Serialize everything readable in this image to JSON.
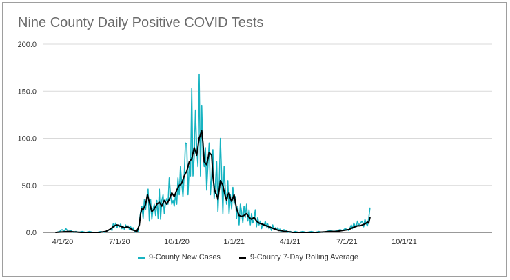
{
  "chart_data": {
    "type": "line",
    "title": "Nine County Daily Positive COVID Tests",
    "xlabel": "",
    "ylabel": "",
    "ylim": [
      0,
      200
    ],
    "y_ticks": [
      "0.0",
      "50.0",
      "100.0",
      "150.0",
      "200.0"
    ],
    "x_ticks": [
      "4/1/20",
      "7/1/20",
      "10/1/20",
      "1/1/21",
      "4/1/21",
      "7/1/21",
      "10/1/21"
    ],
    "x_tick_days": [
      31,
      122,
      214,
      306,
      396,
      487,
      579
    ],
    "xlim_days": [
      0,
      720
    ],
    "x_unit": "days since 3/1/20",
    "legend": "bottom",
    "series": [
      {
        "name": "9-County New Cases",
        "color": "#17b3c1",
        "points": [
          [
            20,
            0
          ],
          [
            26,
            1
          ],
          [
            30,
            3
          ],
          [
            33,
            1
          ],
          [
            36,
            4
          ],
          [
            40,
            1
          ],
          [
            44,
            2
          ],
          [
            48,
            0
          ],
          [
            52,
            1
          ],
          [
            56,
            0
          ],
          [
            62,
            1
          ],
          [
            68,
            0
          ],
          [
            74,
            1
          ],
          [
            80,
            0
          ],
          [
            86,
            0
          ],
          [
            92,
            1
          ],
          [
            98,
            0
          ],
          [
            104,
            2
          ],
          [
            108,
            4
          ],
          [
            110,
            2
          ],
          [
            112,
            9
          ],
          [
            114,
            6
          ],
          [
            116,
            10
          ],
          [
            118,
            5
          ],
          [
            120,
            8
          ],
          [
            122,
            6
          ],
          [
            124,
            9
          ],
          [
            126,
            4
          ],
          [
            128,
            7
          ],
          [
            130,
            3
          ],
          [
            132,
            8
          ],
          [
            134,
            5
          ],
          [
            136,
            7
          ],
          [
            138,
            3
          ],
          [
            140,
            6
          ],
          [
            142,
            2
          ],
          [
            144,
            5
          ],
          [
            146,
            2
          ],
          [
            148,
            0
          ],
          [
            150,
            3
          ],
          [
            152,
            1
          ],
          [
            154,
            12
          ],
          [
            156,
            22
          ],
          [
            158,
            28
          ],
          [
            160,
            15
          ],
          [
            162,
            35
          ],
          [
            164,
            24
          ],
          [
            166,
            38
          ],
          [
            168,
            46
          ],
          [
            170,
            12
          ],
          [
            172,
            35
          ],
          [
            174,
            14
          ],
          [
            176,
            25
          ],
          [
            178,
            30
          ],
          [
            180,
            18
          ],
          [
            182,
            34
          ],
          [
            184,
            15
          ],
          [
            186,
            46
          ],
          [
            188,
            14
          ],
          [
            190,
            34
          ],
          [
            192,
            40
          ],
          [
            194,
            20
          ],
          [
            196,
            32
          ],
          [
            198,
            36
          ],
          [
            200,
            30
          ],
          [
            202,
            58
          ],
          [
            204,
            40
          ],
          [
            206,
            30
          ],
          [
            208,
            34
          ],
          [
            210,
            28
          ],
          [
            212,
            40
          ],
          [
            214,
            30
          ],
          [
            216,
            58
          ],
          [
            218,
            40
          ],
          [
            220,
            70
          ],
          [
            222,
            52
          ],
          [
            224,
            38
          ],
          [
            226,
            60
          ],
          [
            228,
            95
          ],
          [
            230,
            94
          ],
          [
            232,
            40
          ],
          [
            234,
            70
          ],
          [
            236,
            60
          ],
          [
            238,
            153
          ],
          [
            240,
            60
          ],
          [
            242,
            80
          ],
          [
            244,
            130
          ],
          [
            246,
            90
          ],
          [
            248,
            70
          ],
          [
            250,
            168
          ],
          [
            252,
            60
          ],
          [
            254,
            135
          ],
          [
            256,
            82
          ],
          [
            258,
            70
          ],
          [
            260,
            90
          ],
          [
            262,
            45
          ],
          [
            264,
            72
          ],
          [
            266,
            95
          ],
          [
            268,
            40
          ],
          [
            270,
            60
          ],
          [
            272,
            88
          ],
          [
            274,
            36
          ],
          [
            276,
            52
          ],
          [
            278,
            75
          ],
          [
            280,
            22
          ],
          [
            282,
            50
          ],
          [
            284,
            100
          ],
          [
            286,
            60
          ],
          [
            288,
            20
          ],
          [
            290,
            70
          ],
          [
            292,
            45
          ],
          [
            294,
            30
          ],
          [
            296,
            55
          ],
          [
            298,
            20
          ],
          [
            300,
            40
          ],
          [
            302,
            25
          ],
          [
            304,
            48
          ],
          [
            306,
            30
          ],
          [
            308,
            38
          ],
          [
            310,
            15
          ],
          [
            312,
            28
          ],
          [
            314,
            8
          ],
          [
            316,
            30
          ],
          [
            318,
            22
          ],
          [
            320,
            10
          ],
          [
            322,
            28
          ],
          [
            324,
            16
          ],
          [
            326,
            30
          ],
          [
            328,
            12
          ],
          [
            330,
            24
          ],
          [
            332,
            8
          ],
          [
            334,
            20
          ],
          [
            336,
            10
          ],
          [
            338,
            14
          ],
          [
            340,
            24
          ],
          [
            342,
            6
          ],
          [
            344,
            16
          ],
          [
            346,
            8
          ],
          [
            348,
            12
          ],
          [
            350,
            4
          ],
          [
            352,
            10
          ],
          [
            354,
            7
          ],
          [
            356,
            12
          ],
          [
            358,
            6
          ],
          [
            360,
            9
          ],
          [
            362,
            4
          ],
          [
            364,
            6
          ],
          [
            366,
            2
          ],
          [
            368,
            8
          ],
          [
            370,
            3
          ],
          [
            372,
            5
          ],
          [
            374,
            3
          ],
          [
            376,
            5
          ],
          [
            378,
            2
          ],
          [
            380,
            4
          ],
          [
            382,
            1
          ],
          [
            384,
            2
          ],
          [
            386,
            3
          ],
          [
            388,
            1
          ],
          [
            390,
            2
          ],
          [
            392,
            0
          ],
          [
            396,
            1
          ],
          [
            400,
            0
          ],
          [
            404,
            1
          ],
          [
            410,
            0
          ],
          [
            416,
            1
          ],
          [
            422,
            0
          ],
          [
            430,
            1
          ],
          [
            436,
            0
          ],
          [
            442,
            1
          ],
          [
            448,
            0
          ],
          [
            454,
            1
          ],
          [
            460,
            2
          ],
          [
            466,
            1
          ],
          [
            472,
            2
          ],
          [
            476,
            3
          ],
          [
            480,
            2
          ],
          [
            484,
            4
          ],
          [
            488,
            3
          ],
          [
            490,
            2
          ],
          [
            492,
            5
          ],
          [
            494,
            8
          ],
          [
            496,
            4
          ],
          [
            498,
            10
          ],
          [
            500,
            7
          ],
          [
            502,
            6
          ],
          [
            504,
            12
          ],
          [
            506,
            8
          ],
          [
            508,
            9
          ],
          [
            510,
            11
          ],
          [
            512,
            12
          ],
          [
            514,
            6
          ],
          [
            516,
            14
          ],
          [
            518,
            9
          ],
          [
            520,
            7
          ],
          [
            522,
            15
          ],
          [
            524,
            26
          ]
        ]
      },
      {
        "name": "9-County 7-Day Rolling Average",
        "color": "#000000",
        "points": [
          [
            20,
            0
          ],
          [
            40,
            1
          ],
          [
            60,
            0
          ],
          [
            90,
            0
          ],
          [
            100,
            1
          ],
          [
            106,
            3
          ],
          [
            110,
            5
          ],
          [
            114,
            7
          ],
          [
            118,
            8
          ],
          [
            122,
            7
          ],
          [
            126,
            6
          ],
          [
            130,
            5
          ],
          [
            134,
            6
          ],
          [
            138,
            5
          ],
          [
            142,
            3
          ],
          [
            146,
            2
          ],
          [
            150,
            1
          ],
          [
            154,
            8
          ],
          [
            156,
            20
          ],
          [
            158,
            25
          ],
          [
            160,
            24
          ],
          [
            164,
            30
          ],
          [
            167,
            40
          ],
          [
            170,
            32
          ],
          [
            174,
            22
          ],
          [
            178,
            25
          ],
          [
            182,
            30
          ],
          [
            186,
            32
          ],
          [
            190,
            28
          ],
          [
            194,
            34
          ],
          [
            198,
            30
          ],
          [
            202,
            35
          ],
          [
            206,
            42
          ],
          [
            210,
            38
          ],
          [
            214,
            45
          ],
          [
            218,
            50
          ],
          [
            222,
            52
          ],
          [
            226,
            60
          ],
          [
            230,
            65
          ],
          [
            234,
            75
          ],
          [
            238,
            78
          ],
          [
            242,
            90
          ],
          [
            246,
            82
          ],
          [
            250,
            100
          ],
          [
            254,
            108
          ],
          [
            256,
            95
          ],
          [
            258,
            75
          ],
          [
            262,
            72
          ],
          [
            266,
            85
          ],
          [
            270,
            82
          ],
          [
            272,
            60
          ],
          [
            274,
            48
          ],
          [
            276,
            42
          ],
          [
            278,
            40
          ],
          [
            280,
            35
          ],
          [
            284,
            55
          ],
          [
            288,
            50
          ],
          [
            292,
            38
          ],
          [
            294,
            34
          ],
          [
            296,
            40
          ],
          [
            298,
            42
          ],
          [
            300,
            36
          ],
          [
            302,
            33
          ],
          [
            306,
            40
          ],
          [
            310,
            25
          ],
          [
            314,
            18
          ],
          [
            318,
            17
          ],
          [
            322,
            18
          ],
          [
            326,
            20
          ],
          [
            330,
            16
          ],
          [
            334,
            14
          ],
          [
            338,
            16
          ],
          [
            342,
            12
          ],
          [
            346,
            10
          ],
          [
            350,
            9
          ],
          [
            354,
            8
          ],
          [
            358,
            7
          ],
          [
            362,
            6
          ],
          [
            366,
            5
          ],
          [
            370,
            4
          ],
          [
            374,
            3
          ],
          [
            378,
            2
          ],
          [
            382,
            2
          ],
          [
            386,
            1
          ],
          [
            390,
            1
          ],
          [
            400,
            0
          ],
          [
            420,
            0
          ],
          [
            440,
            0
          ],
          [
            460,
            1
          ],
          [
            470,
            1
          ],
          [
            480,
            2
          ],
          [
            490,
            3
          ],
          [
            496,
            5
          ],
          [
            500,
            6
          ],
          [
            504,
            7
          ],
          [
            508,
            7
          ],
          [
            512,
            8
          ],
          [
            516,
            9
          ],
          [
            520,
            11
          ],
          [
            522,
            10
          ],
          [
            524,
            16
          ]
        ]
      }
    ]
  }
}
